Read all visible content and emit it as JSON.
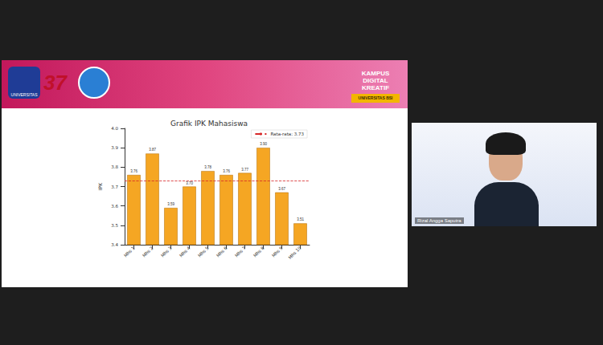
{
  "chart_data": {
    "type": "bar",
    "title": "Grafik IPK Mahasiswa",
    "y_label": "IPK",
    "categories": [
      "Mhs 1",
      "Mhs 2",
      "Mhs 3",
      "Mhs 4",
      "Mhs 5",
      "Mhs 6",
      "Mhs 7",
      "Mhs 8",
      "Mhs 9",
      "Mhs 10"
    ],
    "values": [
      3.76,
      3.87,
      3.59,
      3.7,
      3.78,
      3.76,
      3.77,
      3.9,
      3.67,
      3.51
    ],
    "value_labels": [
      "3.76",
      "3.87",
      "3.59",
      "3.70",
      "3.78",
      "3.76",
      "3.77",
      "3.90",
      "3.67",
      "3.51"
    ],
    "color": "#f5a623",
    "ylim": [
      3.4,
      4.0
    ],
    "yticks": [
      3.4,
      3.5,
      3.6,
      3.7,
      3.8,
      3.9,
      {
        "value": 4.0,
        "label": "4.0"
      }
    ],
    "grid": false,
    "data_labels": true,
    "legend": "upper right",
    "mean_line": {
      "value": 3.73,
      "label": "Rata-rata: 3.73",
      "color": "#d62728",
      "line_style": "dashed"
    }
  },
  "page": {
    "logo_text": "UNIVERSITAS",
    "anniversary": "37",
    "header_right": "KAMPUS DIGITAL KREATIF",
    "header_right_sub": "UNIVERSITAS BSI",
    "speaker": "Rizal Angga Saputra"
  }
}
